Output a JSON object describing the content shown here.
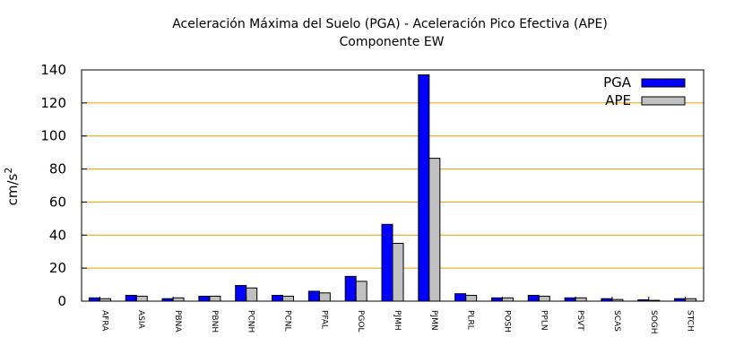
{
  "chart_data": {
    "type": "bar",
    "title": "Aceleración Máxima del Suelo (PGA) -  Aceleración Pico Efectiva (APE)",
    "subtitle": "Componente EW",
    "xlabel": "",
    "ylabel": "cm/s",
    "ylabel_superscript": "2",
    "ylim": [
      0,
      140
    ],
    "yticks": [
      0,
      20,
      40,
      60,
      80,
      100,
      120,
      140
    ],
    "grid": true,
    "grid_color": "#e6a000",
    "legend_position": "top-right",
    "categories": [
      "AFRA",
      "ASIA",
      "PBNA",
      "PBNH",
      "PCNH",
      "PCNL",
      "PFAL",
      "PGOL",
      "PJMH",
      "PJMN",
      "PLRL",
      "POSH",
      "PPLN",
      "PSVT",
      "SCAS",
      "SOGH",
      "STCH"
    ],
    "series": [
      {
        "name": "PGA",
        "color": "#0000ff",
        "values": [
          2.0,
          3.5,
          1.5,
          3.0,
          9.5,
          3.5,
          6.0,
          15.0,
          46.5,
          137.0,
          4.5,
          2.0,
          3.5,
          2.0,
          1.5,
          0.8,
          1.5
        ]
      },
      {
        "name": "APE",
        "color": "#c0c0c0",
        "values": [
          1.5,
          3.0,
          2.0,
          3.0,
          8.0,
          3.0,
          5.0,
          12.0,
          35.0,
          86.5,
          3.5,
          2.0,
          3.0,
          2.0,
          1.0,
          0.5,
          1.5
        ]
      }
    ]
  }
}
